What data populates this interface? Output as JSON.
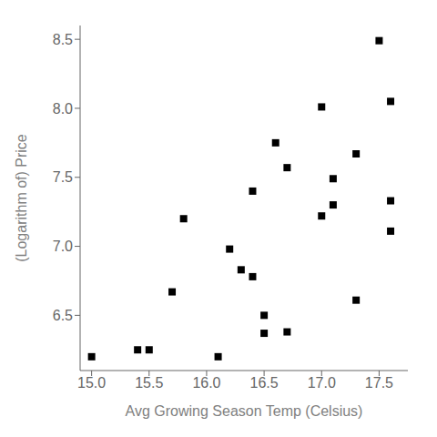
{
  "chart_data": {
    "type": "scatter",
    "x": [
      15.0,
      15.4,
      15.5,
      15.7,
      15.8,
      16.1,
      16.2,
      16.3,
      16.4,
      16.4,
      16.5,
      16.5,
      16.6,
      16.7,
      16.7,
      17.0,
      17.0,
      17.1,
      17.1,
      17.3,
      17.3,
      17.5,
      17.6,
      17.6,
      17.6
    ],
    "values": [
      6.2,
      6.25,
      6.25,
      6.67,
      7.2,
      6.2,
      6.98,
      6.83,
      6.78,
      7.4,
      6.5,
      6.37,
      7.75,
      6.38,
      7.57,
      8.01,
      7.22,
      7.3,
      7.49,
      7.67,
      6.61,
      8.49,
      7.33,
      8.05,
      7.11
    ],
    "xlabel": "Avg Growing Season Temp (Celsius)",
    "ylabel": "(Logarithm of) Price",
    "xlim": [
      14.9,
      17.75
    ],
    "ylim": [
      6.1,
      8.6
    ],
    "xticks": [
      {
        "value": 15.0,
        "label": "15.0"
      },
      15.5,
      {
        "value": 16.0,
        "label": "16.0"
      },
      16.5,
      {
        "value": 17.0,
        "label": "17.0"
      },
      17.5
    ],
    "yticks": [
      6.5,
      {
        "value": 7.0,
        "label": "7.0"
      },
      7.5,
      {
        "value": 8.0,
        "label": "8.0"
      },
      8.5
    ],
    "marker": "square",
    "color": "black",
    "grid": false
  }
}
